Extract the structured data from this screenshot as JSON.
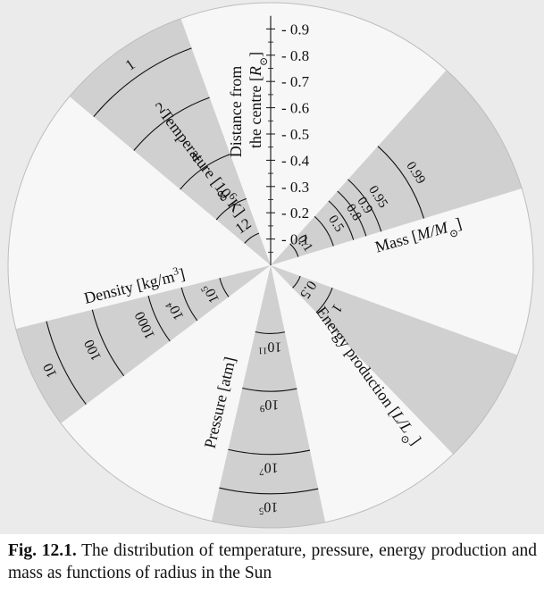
{
  "figure": {
    "caption_label": "Fig. 12.1.",
    "caption_text": " The distribution of temperature, pressure, energy production and mass as functions of radius in the Sun"
  },
  "colors": {
    "background": "#ebebeb",
    "sector": "#d0d0d0",
    "disk": "#f7f7f7",
    "ink": "#111111"
  },
  "distance_axis": {
    "label_line1": "Distance from",
    "label_line2": "the centre [",
    "label_unit": "R",
    "label_unit_sub": "⊙",
    "label_close": "]",
    "ticks": [
      "0.1",
      "0.2",
      "0.3",
      "0.4",
      "0.5",
      "0.6",
      "0.7",
      "0.8",
      "0.9"
    ]
  },
  "temperature": {
    "label": "Temperature [10",
    "label_sup": "6",
    "label_unit": "K]",
    "arcs": [
      {
        "value": "1",
        "r": 0.88
      },
      {
        "value": "2",
        "r": 0.68
      },
      {
        "value": "4",
        "r": 0.45
      },
      {
        "value": "8",
        "r": 0.27
      },
      {
        "value": "12",
        "r": 0.13
      }
    ]
  },
  "mass": {
    "label": "Mass [",
    "label_unit": "M/M",
    "label_unit_sub": "⊙",
    "label_close": "]",
    "arcs": [
      {
        "value": "0.1",
        "r": 0.11
      },
      {
        "value": "0.5",
        "r": 0.25
      },
      {
        "value": "0.8",
        "r": 0.33
      },
      {
        "value": "0.9",
        "r": 0.38
      },
      {
        "value": "0.95",
        "r": 0.44
      },
      {
        "value": "0.99",
        "r": 0.61
      }
    ]
  },
  "density": {
    "label": "Density [kg/m",
    "label_sup": "3",
    "label_close": "]",
    "arcs": [
      {
        "value": "10",
        "r": 0.88,
        "sup": ""
      },
      {
        "value": "100",
        "r": 0.7,
        "sup": ""
      },
      {
        "value": "1000",
        "r": 0.48,
        "sup": ""
      },
      {
        "value": "10",
        "r": 0.35,
        "sup": "4"
      },
      {
        "value": "10",
        "r": 0.2,
        "sup": "5"
      }
    ]
  },
  "pressure": {
    "label": "Pressure [atm]",
    "arcs": [
      {
        "value": "10",
        "r": 0.26,
        "sup": "11"
      },
      {
        "value": "10",
        "r": 0.48,
        "sup": "9"
      },
      {
        "value": "10",
        "r": 0.72,
        "sup": "7"
      },
      {
        "value": "10",
        "r": 0.87,
        "sup": "5"
      }
    ]
  },
  "energy": {
    "label": "Energy production [",
    "label_unit": "L/L",
    "label_unit_sub": "⊙",
    "label_close": "]",
    "arcs": [
      {
        "value": "0.5",
        "r": 0.12
      },
      {
        "value": "1",
        "r": 0.25
      }
    ]
  }
}
